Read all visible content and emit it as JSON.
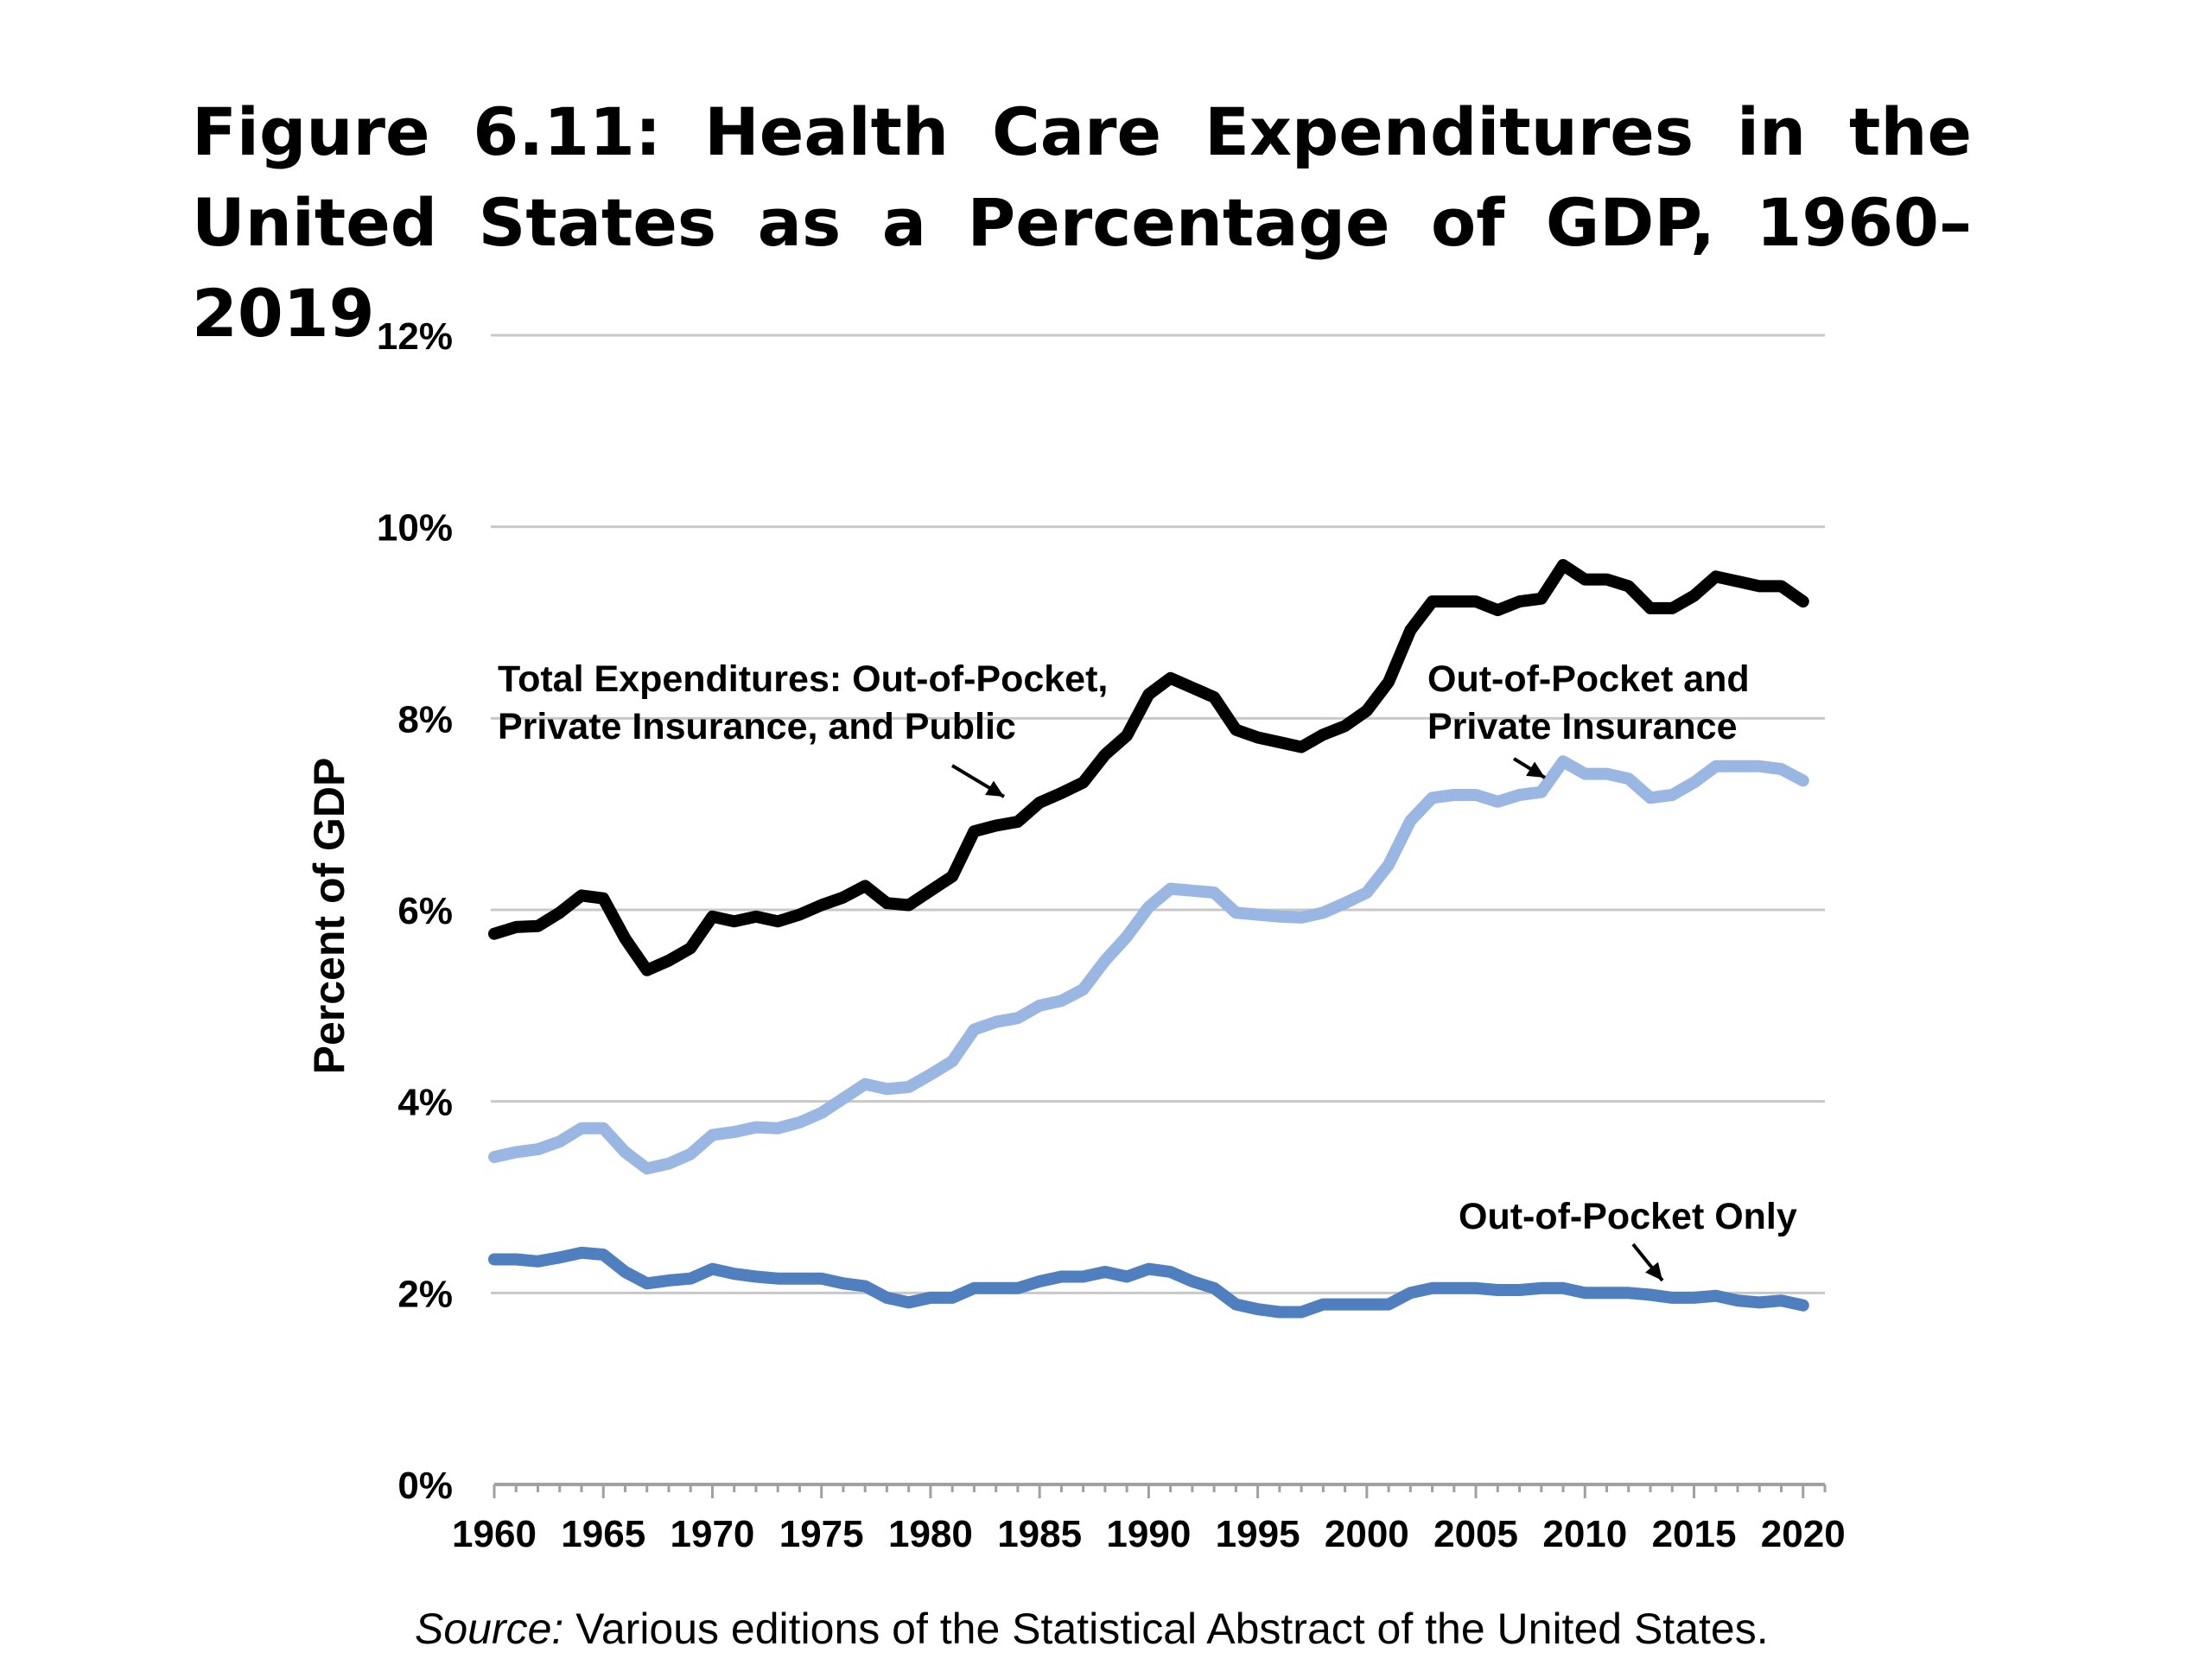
{
  "title": "Figure 6.11: Health Care Expenditures in the United States as a Percentage of GDP, 1960–2019",
  "source": {
    "prefix": "Source:",
    "text": " Various editions of the Statistical Abstract of the United States."
  },
  "chart_data": {
    "type": "line",
    "ylabel": "Percent of GDP",
    "xlim": [
      1960,
      2021
    ],
    "ylim": [
      0,
      12
    ],
    "grid": true,
    "x_ticks": [
      1960,
      1965,
      1970,
      1975,
      1980,
      1985,
      1990,
      1995,
      2000,
      2005,
      2010,
      2015,
      2020
    ],
    "y_ticks": [
      0,
      2,
      4,
      6,
      8,
      10,
      12
    ],
    "y_tick_labels": [
      "0%",
      "2%",
      "4%",
      "6%",
      "8%",
      "10%",
      "12%"
    ],
    "x": [
      1960,
      1961,
      1962,
      1963,
      1964,
      1965,
      1966,
      1967,
      1968,
      1969,
      1970,
      1971,
      1972,
      1973,
      1974,
      1975,
      1976,
      1977,
      1978,
      1979,
      1980,
      1981,
      1982,
      1983,
      1984,
      1985,
      1986,
      1987,
      1988,
      1989,
      1990,
      1991,
      1992,
      1993,
      1994,
      1995,
      1996,
      1997,
      1998,
      1999,
      2000,
      2001,
      2002,
      2003,
      2004,
      2005,
      2006,
      2007,
      2008,
      2009,
      2010,
      2011,
      2012,
      2013,
      2014,
      2015,
      2016,
      2017,
      2018,
      2019,
      2020
    ],
    "series": [
      {
        "name": "Total Expenditures: Out-of-Pocket, Private Insurance, and Public",
        "color": "#000000",
        "values": [
          5.75,
          5.82,
          5.83,
          5.97,
          6.15,
          6.12,
          5.7,
          5.37,
          5.47,
          5.6,
          5.93,
          5.88,
          5.93,
          5.88,
          5.95,
          6.05,
          6.13,
          6.25,
          6.07,
          6.05,
          6.2,
          6.35,
          6.82,
          6.88,
          6.92,
          7.12,
          7.22,
          7.33,
          7.62,
          7.82,
          8.25,
          8.42,
          8.32,
          8.22,
          7.88,
          7.8,
          7.75,
          7.7,
          7.83,
          7.92,
          8.08,
          8.38,
          8.92,
          9.22,
          9.22,
          9.22,
          9.13,
          9.22,
          9.25,
          9.6,
          9.45,
          9.45,
          9.38,
          9.15,
          9.15,
          9.28,
          9.48,
          9.43,
          9.38,
          9.38,
          9.22
        ]
      },
      {
        "name": "Out-of-Pocket and Private Insurance",
        "color": "#9ab7e3",
        "values": [
          3.42,
          3.47,
          3.5,
          3.58,
          3.72,
          3.72,
          3.47,
          3.3,
          3.35,
          3.45,
          3.65,
          3.68,
          3.73,
          3.72,
          3.78,
          3.88,
          4.03,
          4.18,
          4.13,
          4.15,
          4.28,
          4.42,
          4.75,
          4.83,
          4.87,
          5.0,
          5.05,
          5.17,
          5.47,
          5.72,
          6.03,
          6.22,
          6.2,
          6.18,
          5.97,
          5.95,
          5.93,
          5.92,
          5.97,
          6.07,
          6.18,
          6.47,
          6.93,
          7.17,
          7.2,
          7.2,
          7.13,
          7.2,
          7.23,
          7.55,
          7.42,
          7.42,
          7.37,
          7.17,
          7.2,
          7.33,
          7.5,
          7.5,
          7.5,
          7.47,
          7.35
        ]
      },
      {
        "name": "Out-of-Pocket Only",
        "color": "#4f7fbf",
        "values": [
          2.35,
          2.35,
          2.33,
          2.37,
          2.42,
          2.4,
          2.22,
          2.1,
          2.13,
          2.15,
          2.25,
          2.2,
          2.17,
          2.15,
          2.15,
          2.15,
          2.1,
          2.07,
          1.95,
          1.9,
          1.95,
          1.95,
          2.05,
          2.05,
          2.05,
          2.12,
          2.17,
          2.17,
          2.22,
          2.17,
          2.25,
          2.22,
          2.12,
          2.05,
          1.88,
          1.83,
          1.8,
          1.8,
          1.88,
          1.88,
          1.88,
          1.88,
          2.0,
          2.05,
          2.05,
          2.05,
          2.03,
          2.03,
          2.05,
          2.05,
          2.0,
          2.0,
          2.0,
          1.98,
          1.95,
          1.95,
          1.97,
          1.92,
          1.9,
          1.92,
          1.87
        ]
      }
    ],
    "annotations": [
      {
        "lines": [
          "Total Expenditures: Out-of-Pocket,",
          "Private Insurance, and Public"
        ]
      },
      {
        "lines": [
          "Out-of-Pocket and",
          "Private Insurance"
        ]
      },
      {
        "lines": [
          "Out-of-Pocket Only"
        ]
      }
    ]
  }
}
